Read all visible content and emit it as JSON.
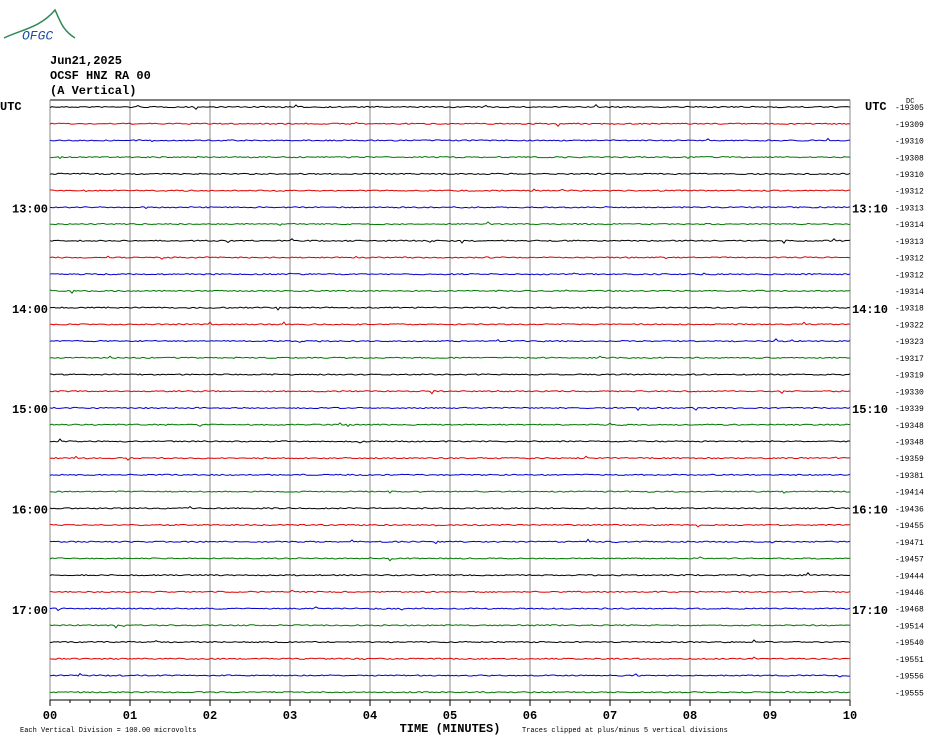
{
  "logo": "OFGC",
  "header": {
    "date": "Jun21,2025",
    "station": "OCSF HNZ RA 00",
    "component": "(A Vertical)"
  },
  "left_axis": {
    "label": "UTC",
    "times": [
      "13:00",
      "14:00",
      "15:00",
      "16:00",
      "17:00"
    ]
  },
  "right_axis": {
    "label": "UTC",
    "dc": "DC",
    "times": [
      "13:10",
      "14:10",
      "15:10",
      "16:10",
      "17:10"
    ],
    "offsets": [
      "-19305",
      "-19309",
      "-19310",
      "-19308",
      "-19310",
      "-19312",
      "-19313",
      "-19314",
      "-19313",
      "-19312",
      "-19312",
      "-19314",
      "-19318",
      "-19322",
      "-19323",
      "-19317",
      "-19319",
      "-19330",
      "-19339",
      "-19348",
      "-19348",
      "-19359",
      "-19381",
      "-19414",
      "-19436",
      "-19455",
      "-19471",
      "-19457",
      "-19444",
      "-19446",
      "-19468",
      "-19514",
      "-19540",
      "-19551",
      "-19556",
      "-19555"
    ]
  },
  "x_axis": {
    "title": "TIME (MINUTES)",
    "labels": [
      "00",
      "01",
      "02",
      "03",
      "04",
      "05",
      "06",
      "07",
      "08",
      "09",
      "10"
    ]
  },
  "footer": {
    "scale": "Each Vertical Division =  100.00 microvolts",
    "clip": "Traces clipped at plus/minus 5 vertical divisions"
  }
}
